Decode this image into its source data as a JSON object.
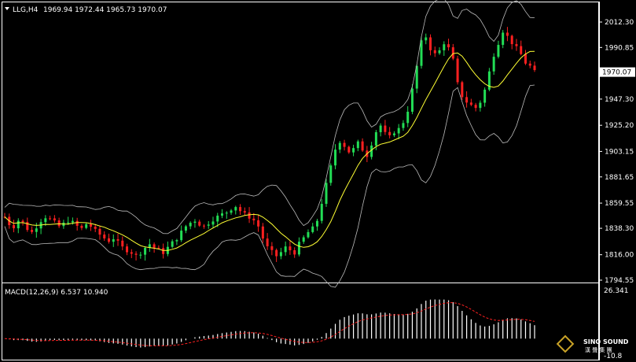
{
  "header": {
    "symbol": "LLG,H4",
    "ohlc": "1969.94 1972.44 1965.73 1970.07",
    "menu_icon": "triangle-down-icon"
  },
  "macd": {
    "label": "MACD(12,26,9) 6.537 10.940",
    "axis_top": "26.341",
    "axis_bottom": "-10.8"
  },
  "price_axis": {
    "ticks": [
      "2012.30",
      "1990.85",
      "1970.07",
      "1947.30",
      "1925.20",
      "1903.15",
      "1881.65",
      "1859.55",
      "1838.30",
      "1816.00",
      "1794.55"
    ],
    "current_price": "1970.07",
    "current_price_color": "#ffffff"
  },
  "watermark": {
    "line1": "SINO SOUND",
    "line2": "漢 聲 集 團"
  },
  "colors": {
    "bull": "#22dd55",
    "bear": "#ff2020",
    "ma": "#ffff33",
    "bands": "#bbbbbb",
    "macd_hist": "#ffffff",
    "macd_signal": "#ff2020",
    "border": "#ffffff"
  },
  "chart_data": [
    {
      "type": "candlestick",
      "title": "LLG,H4",
      "ylim": [
        1794.55,
        2012.3
      ],
      "indicators": [
        "bollinger-bands",
        "moving-average"
      ],
      "grid": false,
      "close_path": [
        1848,
        1842,
        1840,
        1845,
        1843,
        1838,
        1835,
        1840,
        1845,
        1848,
        1846,
        1843,
        1840,
        1842,
        1845,
        1843,
        1840,
        1838,
        1842,
        1840,
        1836,
        1833,
        1830,
        1828,
        1830,
        1826,
        1822,
        1820,
        1818,
        1815,
        1818,
        1822,
        1825,
        1822,
        1820,
        1818,
        1822,
        1826,
        1830,
        1835,
        1840,
        1843,
        1845,
        1842,
        1840,
        1843,
        1846,
        1848,
        1850,
        1852,
        1855,
        1857,
        1853,
        1850,
        1848,
        1845,
        1840,
        1830,
        1822,
        1818,
        1815,
        1818,
        1822,
        1820,
        1818,
        1825,
        1830,
        1835,
        1838,
        1845,
        1860,
        1875,
        1890,
        1905,
        1912,
        1908,
        1903,
        1905,
        1910,
        1905,
        1900,
        1910,
        1920,
        1925,
        1918,
        1915,
        1920,
        1922,
        1928,
        1938,
        1955,
        1975,
        1995,
        2000,
        1990,
        1985,
        1988,
        1995,
        1990,
        1980,
        1960,
        1950,
        1945,
        1942,
        1940,
        1945,
        1955,
        1970,
        1985,
        1995,
        2005,
        2000,
        1995,
        1990,
        1985,
        1978,
        1975,
        1970
      ]
    },
    {
      "type": "bar",
      "title": "MACD(12,26,9) 6.537 10.940",
      "ylim": [
        -10.8,
        26.341
      ],
      "series": [
        {
          "name": "MACD",
          "kind": "histogram"
        },
        {
          "name": "Signal",
          "kind": "line"
        }
      ]
    }
  ]
}
